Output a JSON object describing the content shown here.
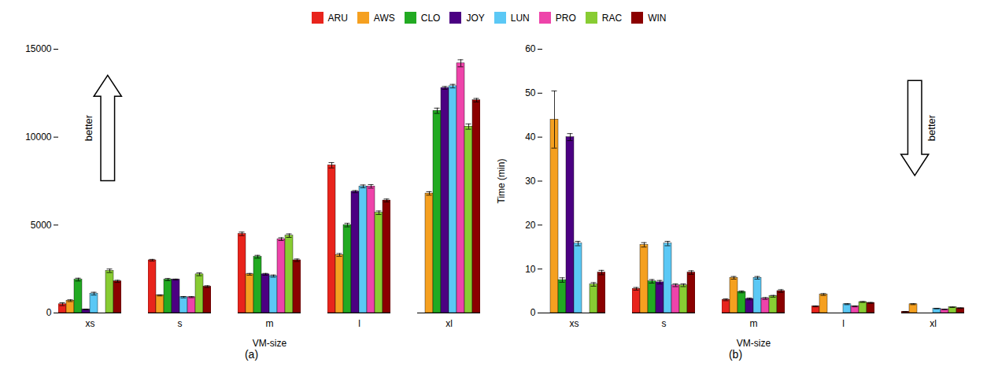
{
  "chart_data": [
    {
      "type": "bar",
      "title": "(a)",
      "xlabel": "VM-size",
      "categories": [
        "xs",
        "s",
        "m",
        "l",
        "xl"
      ],
      "ylim": [
        0,
        15000
      ],
      "yticks": [
        0,
        5000,
        10000,
        15000
      ],
      "legend": "top",
      "annotations": [
        {
          "text": "better",
          "arrow": "up"
        }
      ],
      "series": [
        {
          "name": "ARU",
          "color": "#e8241c",
          "values": [
            500,
            3000,
            4500,
            8400,
            0
          ],
          "errors": [
            80,
            50,
            100,
            150,
            0
          ]
        },
        {
          "name": "AWS",
          "color": "#f5a020",
          "values": [
            700,
            1000,
            2200,
            3300,
            6800
          ],
          "errors": [
            50,
            30,
            50,
            80,
            100
          ]
        },
        {
          "name": "CLO",
          "color": "#22aa22",
          "values": [
            1900,
            1900,
            3200,
            5000,
            11500
          ],
          "errors": [
            80,
            60,
            80,
            100,
            150
          ]
        },
        {
          "name": "JOY",
          "color": "#4b0082",
          "values": [
            200,
            1900,
            2200,
            6900,
            12800
          ],
          "errors": [
            20,
            30,
            50,
            60,
            80
          ]
        },
        {
          "name": "LUN",
          "color": "#5bc8f5",
          "values": [
            1100,
            900,
            2100,
            7200,
            12900
          ],
          "errors": [
            80,
            40,
            60,
            80,
            100
          ]
        },
        {
          "name": "PRO",
          "color": "#ee44aa",
          "values": [
            0,
            900,
            4200,
            7200,
            14200
          ],
          "errors": [
            0,
            30,
            80,
            100,
            200
          ]
        },
        {
          "name": "RAC",
          "color": "#88cc33",
          "values": [
            2400,
            2200,
            4400,
            5700,
            10600
          ],
          "errors": [
            100,
            80,
            100,
            100,
            150
          ]
        },
        {
          "name": "WIN",
          "color": "#8b0000",
          "values": [
            1800,
            1500,
            3000,
            6400,
            12100
          ],
          "errors": [
            60,
            50,
            70,
            80,
            100
          ]
        }
      ]
    },
    {
      "type": "bar",
      "title": "(b)",
      "xlabel": "VM-size",
      "ylabel": "Time (min)",
      "categories": [
        "xs",
        "s",
        "m",
        "l",
        "xl"
      ],
      "ylim": [
        0,
        60
      ],
      "yticks": [
        0,
        10,
        20,
        30,
        40,
        50,
        60
      ],
      "legend": "top",
      "annotations": [
        {
          "text": "better",
          "arrow": "down"
        }
      ],
      "series": [
        {
          "name": "ARU",
          "color": "#e8241c",
          "values": [
            0,
            5.5,
            3.0,
            1.5,
            0.3
          ],
          "errors": [
            0,
            0.3,
            0.2,
            0.1,
            0.05
          ]
        },
        {
          "name": "AWS",
          "color": "#f5a020",
          "values": [
            44.0,
            15.5,
            8.0,
            4.2,
            2.0
          ],
          "errors": [
            6.5,
            0.5,
            0.3,
            0.2,
            0.1
          ]
        },
        {
          "name": "CLO",
          "color": "#22aa22",
          "values": [
            7.5,
            7.2,
            4.8,
            0,
            0
          ],
          "errors": [
            0.5,
            0.4,
            0.2,
            0,
            0
          ]
        },
        {
          "name": "JOY",
          "color": "#4b0082",
          "values": [
            40.0,
            7.0,
            3.2,
            0,
            0
          ],
          "errors": [
            0.8,
            0.4,
            0.2,
            0,
            0
          ]
        },
        {
          "name": "LUN",
          "color": "#5bc8f5",
          "values": [
            15.8,
            15.8,
            8.0,
            2.0,
            1.0
          ],
          "errors": [
            0.5,
            0.5,
            0.3,
            0.1,
            0.05
          ]
        },
        {
          "name": "PRO",
          "color": "#ee44aa",
          "values": [
            0,
            6.3,
            3.3,
            1.5,
            0.8
          ],
          "errors": [
            0,
            0.3,
            0.2,
            0.1,
            0.05
          ]
        },
        {
          "name": "RAC",
          "color": "#88cc33",
          "values": [
            6.5,
            6.3,
            3.8,
            2.5,
            1.3
          ],
          "errors": [
            0.4,
            0.3,
            0.2,
            0.1,
            0.05
          ]
        },
        {
          "name": "WIN",
          "color": "#8b0000",
          "values": [
            9.2,
            9.2,
            5.0,
            2.3,
            1.1
          ],
          "errors": [
            0.5,
            0.4,
            0.3,
            0.1,
            0.05
          ]
        }
      ]
    }
  ]
}
